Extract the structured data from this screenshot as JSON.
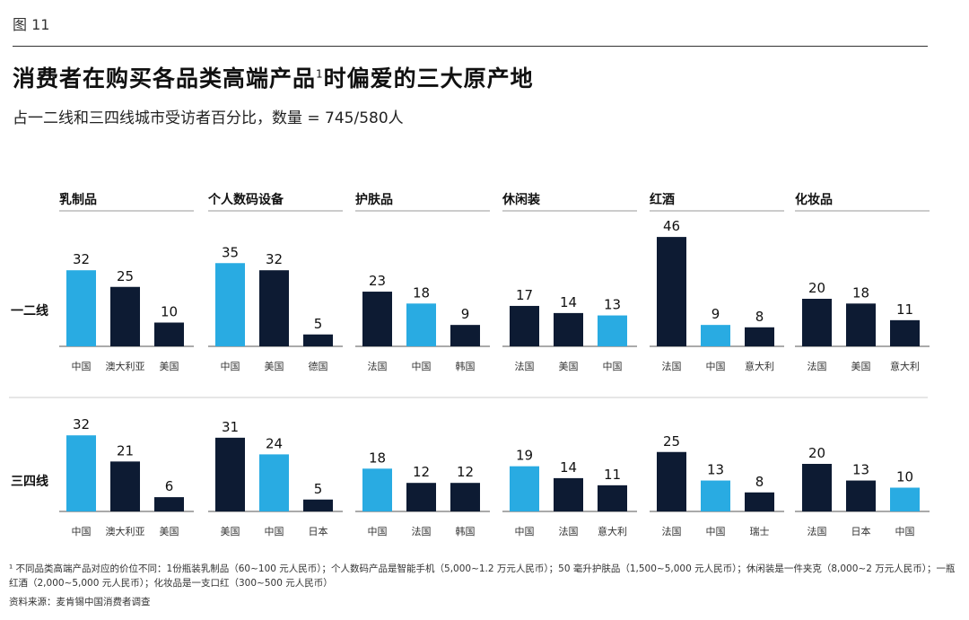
{
  "figure_label": "图 11",
  "title": "消费者在购买各品类高端产品",
  "title_sup": "1",
  "title_suffix": "时偏爱的三大原产地",
  "subtitle": "占一二线和三四线城市受访者百分比，数量 = 745/580人",
  "colors": {
    "highlight": "#29ABE2",
    "default": "#0D1B33",
    "rule": "#999999",
    "row_rule": "#cccccc"
  },
  "chart_data": {
    "type": "bar",
    "title": "消费者在购买各品类高端产品时偏爱的三大原产地",
    "subtitle": "占一二线和三四线城市受访者百分比，数量 = 745/580人",
    "unit": "%",
    "ylim": [
      0,
      46
    ],
    "rows": [
      "一二线",
      "三四线"
    ],
    "panels": [
      {
        "category": "乳制品",
        "tier1": {
          "labels": [
            "中国",
            "澳大利亚",
            "美国"
          ],
          "values": [
            32,
            25,
            10
          ],
          "highlight": [
            true,
            false,
            false
          ]
        },
        "tier2": {
          "labels": [
            "中国",
            "澳大利亚",
            "美国"
          ],
          "values": [
            32,
            21,
            6
          ],
          "highlight": [
            true,
            false,
            false
          ]
        }
      },
      {
        "category": "个人数码设备",
        "tier1": {
          "labels": [
            "中国",
            "美国",
            "德国"
          ],
          "values": [
            35,
            32,
            5
          ],
          "highlight": [
            true,
            false,
            false
          ]
        },
        "tier2": {
          "labels": [
            "美国",
            "中国",
            "日本"
          ],
          "values": [
            31,
            24,
            5
          ],
          "highlight": [
            false,
            true,
            false
          ]
        }
      },
      {
        "category": "护肤品",
        "tier1": {
          "labels": [
            "法国",
            "中国",
            "韩国"
          ],
          "values": [
            23,
            18,
            9
          ],
          "highlight": [
            false,
            true,
            false
          ]
        },
        "tier2": {
          "labels": [
            "中国",
            "法国",
            "韩国"
          ],
          "values": [
            18,
            12,
            12
          ],
          "highlight": [
            true,
            false,
            false
          ]
        }
      },
      {
        "category": "休闲装",
        "tier1": {
          "labels": [
            "法国",
            "美国",
            "中国"
          ],
          "values": [
            17,
            14,
            13
          ],
          "highlight": [
            false,
            false,
            true
          ]
        },
        "tier2": {
          "labels": [
            "中国",
            "法国",
            "意大利"
          ],
          "values": [
            19,
            14,
            11
          ],
          "highlight": [
            true,
            false,
            false
          ]
        }
      },
      {
        "category": "红酒",
        "tier1": {
          "labels": [
            "法国",
            "中国",
            "意大利"
          ],
          "values": [
            46,
            9,
            8
          ],
          "highlight": [
            false,
            true,
            false
          ]
        },
        "tier2": {
          "labels": [
            "法国",
            "中国",
            "瑞士"
          ],
          "values": [
            25,
            13,
            8
          ],
          "highlight": [
            false,
            true,
            false
          ]
        }
      },
      {
        "category": "化妆品",
        "tier1": {
          "labels": [
            "法国",
            "美国",
            "意大利"
          ],
          "values": [
            20,
            18,
            11
          ],
          "highlight": [
            false,
            false,
            false
          ]
        },
        "tier2": {
          "labels": [
            "法国",
            "日本",
            "中国"
          ],
          "values": [
            20,
            13,
            10
          ],
          "highlight": [
            false,
            false,
            true
          ]
        }
      }
    ]
  },
  "footnote": "¹ 不同品类高端产品对应的价位不同：1份瓶装乳制品（60~100 元人民币）；个人数码产品是智能手机（5,000~1.2 万元人民币）；50 毫升护肤品（1,500~5,000 元人民币）；休闲装是一件夹克（8,000~2 万元人民币）；一瓶红酒（2,000~5,000 元人民币）；化妆品是一支口红（300~500 元人民币）",
  "source": "资料来源：麦肯锡中国消费者调查"
}
